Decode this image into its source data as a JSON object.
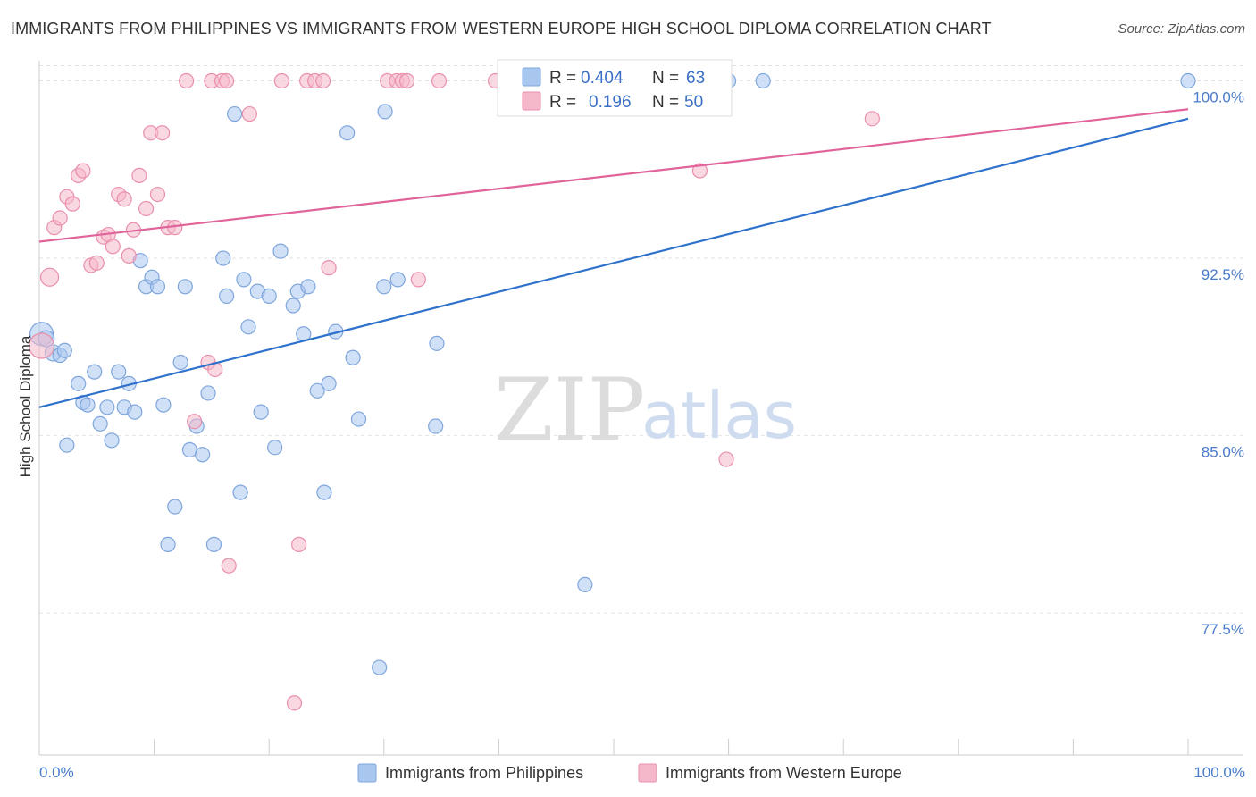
{
  "title": "IMMIGRANTS FROM PHILIPPINES VS IMMIGRANTS FROM WESTERN EUROPE HIGH SCHOOL DIPLOMA CORRELATION CHART",
  "source": "Source: ZipAtlas.com",
  "watermark": {
    "zip": "ZIP",
    "atlas": "atlas"
  },
  "colors": {
    "blue_fill": "#a9c6ee",
    "blue_stroke": "#7fa6dc",
    "blue_line": "#2f72cc",
    "pink_fill": "#f5b8cb",
    "pink_stroke": "#e98fac",
    "pink_line": "#e0649a",
    "tick_text": "#4a7cc9",
    "grid": "#e3e3e3"
  },
  "stats": {
    "blue": {
      "r_label": "R =",
      "r_value": "0.404",
      "n_label": "N =",
      "n_value": "63"
    },
    "pink": {
      "r_label": "R =",
      "r_value": "0.196",
      "n_label": "N =",
      "n_value": "50"
    }
  },
  "chart_data": {
    "type": "scatter",
    "title": "IMMIGRANTS FROM PHILIPPINES VS IMMIGRANTS FROM WESTERN EUROPE HIGH SCHOOL DIPLOMA CORRELATION CHART",
    "xlabel": "",
    "ylabel": "High School Diploma",
    "xlim": [
      0,
      100
    ],
    "ylim": [
      71.5,
      101
    ],
    "x_tick_labels": [
      "0.0%",
      "100.0%"
    ],
    "y_ticks": [
      {
        "value": 100.0,
        "label": "100.0%"
      },
      {
        "value": 92.5,
        "label": "92.5%"
      },
      {
        "value": 85.0,
        "label": "85.0%"
      },
      {
        "value": 77.5,
        "label": "77.5%"
      }
    ],
    "legend": [
      "Immigrants from Philippines",
      "Immigrants from Western Europe"
    ],
    "series": [
      {
        "name": "Immigrants from Philippines",
        "color": "blue",
        "trend": {
          "x": [
            0,
            100
          ],
          "y": [
            86.2,
            98.4
          ]
        },
        "points": [
          [
            0.2,
            89.3,
            13
          ],
          [
            0.6,
            89.1,
            9
          ],
          [
            1.2,
            88.5,
            9
          ],
          [
            1.8,
            88.4,
            8
          ],
          [
            2.2,
            88.6,
            8
          ],
          [
            2.4,
            84.6,
            8
          ],
          [
            3.4,
            87.2,
            8
          ],
          [
            3.8,
            86.4,
            8
          ],
          [
            4.2,
            86.3,
            8
          ],
          [
            4.8,
            87.7,
            8
          ],
          [
            5.3,
            85.5,
            8
          ],
          [
            5.9,
            86.2,
            8
          ],
          [
            6.3,
            84.8,
            8
          ],
          [
            6.9,
            87.7,
            8
          ],
          [
            7.4,
            86.2,
            8
          ],
          [
            7.8,
            87.2,
            8
          ],
          [
            8.3,
            86.0,
            8
          ],
          [
            8.8,
            92.4,
            8
          ],
          [
            9.3,
            91.3,
            8
          ],
          [
            9.8,
            91.7,
            8
          ],
          [
            10.3,
            91.3,
            8
          ],
          [
            10.8,
            86.3,
            8
          ],
          [
            11.2,
            80.4,
            8
          ],
          [
            11.8,
            82.0,
            8
          ],
          [
            12.3,
            88.1,
            8
          ],
          [
            12.7,
            91.3,
            8
          ],
          [
            13.1,
            84.4,
            8
          ],
          [
            13.7,
            85.4,
            8
          ],
          [
            14.2,
            84.2,
            8
          ],
          [
            14.7,
            86.8,
            8
          ],
          [
            15.2,
            80.4,
            8
          ],
          [
            16.0,
            92.5,
            8
          ],
          [
            16.3,
            90.9,
            8
          ],
          [
            17.0,
            98.6,
            8
          ],
          [
            17.5,
            82.6,
            8
          ],
          [
            17.8,
            91.6,
            8
          ],
          [
            18.2,
            89.6,
            8
          ],
          [
            19.0,
            91.1,
            8
          ],
          [
            19.3,
            86.0,
            8
          ],
          [
            20.0,
            90.9,
            8
          ],
          [
            20.5,
            84.5,
            8
          ],
          [
            21.0,
            92.8,
            8
          ],
          [
            22.1,
            90.5,
            8
          ],
          [
            22.5,
            91.1,
            8
          ],
          [
            23.0,
            89.3,
            8
          ],
          [
            23.4,
            91.3,
            8
          ],
          [
            24.2,
            86.9,
            8
          ],
          [
            24.8,
            82.6,
            8
          ],
          [
            25.2,
            87.2,
            8
          ],
          [
            25.8,
            89.4,
            8
          ],
          [
            26.8,
            97.8,
            8
          ],
          [
            27.3,
            88.3,
            8
          ],
          [
            27.8,
            85.7,
            8
          ],
          [
            29.6,
            75.2,
            8
          ],
          [
            30.0,
            91.3,
            8
          ],
          [
            30.1,
            98.7,
            8
          ],
          [
            31.2,
            91.6,
            8
          ],
          [
            34.5,
            85.4,
            8
          ],
          [
            34.6,
            88.9,
            8
          ],
          [
            47.5,
            78.7,
            8
          ],
          [
            60.0,
            100.0,
            8
          ],
          [
            63.0,
            100.0,
            8
          ],
          [
            100.0,
            100.0,
            8
          ]
        ]
      },
      {
        "name": "Immigrants from Western Europe",
        "color": "pink",
        "trend": {
          "x": [
            0,
            100
          ],
          "y": [
            93.2,
            98.8
          ]
        },
        "points": [
          [
            0.2,
            88.8,
            14
          ],
          [
            0.9,
            91.7,
            10
          ],
          [
            1.3,
            93.8,
            8
          ],
          [
            1.8,
            94.2,
            8
          ],
          [
            2.4,
            95.1,
            8
          ],
          [
            2.9,
            94.8,
            8
          ],
          [
            3.4,
            96.0,
            8
          ],
          [
            3.8,
            96.2,
            8
          ],
          [
            4.5,
            92.2,
            8
          ],
          [
            5.0,
            92.3,
            8
          ],
          [
            5.6,
            93.4,
            8
          ],
          [
            6.0,
            93.5,
            8
          ],
          [
            6.4,
            93.0,
            8
          ],
          [
            6.9,
            95.2,
            8
          ],
          [
            7.4,
            95.0,
            8
          ],
          [
            7.8,
            92.6,
            8
          ],
          [
            8.2,
            93.7,
            8
          ],
          [
            8.7,
            96.0,
            8
          ],
          [
            9.3,
            94.6,
            8
          ],
          [
            9.7,
            97.8,
            8
          ],
          [
            10.3,
            95.2,
            8
          ],
          [
            10.7,
            97.8,
            8
          ],
          [
            11.2,
            93.8,
            8
          ],
          [
            11.8,
            93.8,
            8
          ],
          [
            12.8,
            100.0,
            8
          ],
          [
            13.5,
            85.6,
            8
          ],
          [
            14.7,
            88.1,
            8
          ],
          [
            15.0,
            100.0,
            8
          ],
          [
            15.3,
            87.8,
            8
          ],
          [
            15.9,
            100.0,
            8
          ],
          [
            16.3,
            100.0,
            8
          ],
          [
            16.5,
            79.5,
            8
          ],
          [
            18.3,
            98.6,
            8
          ],
          [
            21.1,
            100.0,
            8
          ],
          [
            22.2,
            73.7,
            8
          ],
          [
            22.6,
            80.4,
            8
          ],
          [
            23.3,
            100.0,
            8
          ],
          [
            24.0,
            100.0,
            8
          ],
          [
            24.7,
            100.0,
            8
          ],
          [
            25.2,
            92.1,
            8
          ],
          [
            30.3,
            100.0,
            8
          ],
          [
            31.1,
            100.0,
            8
          ],
          [
            31.6,
            100.0,
            8
          ],
          [
            32.0,
            100.0,
            8
          ],
          [
            33.0,
            91.6,
            8
          ],
          [
            34.8,
            100.0,
            8
          ],
          [
            39.7,
            100.0,
            8
          ],
          [
            57.5,
            96.2,
            8
          ],
          [
            59.8,
            84.0,
            8
          ],
          [
            72.5,
            98.4,
            8
          ]
        ]
      }
    ]
  }
}
